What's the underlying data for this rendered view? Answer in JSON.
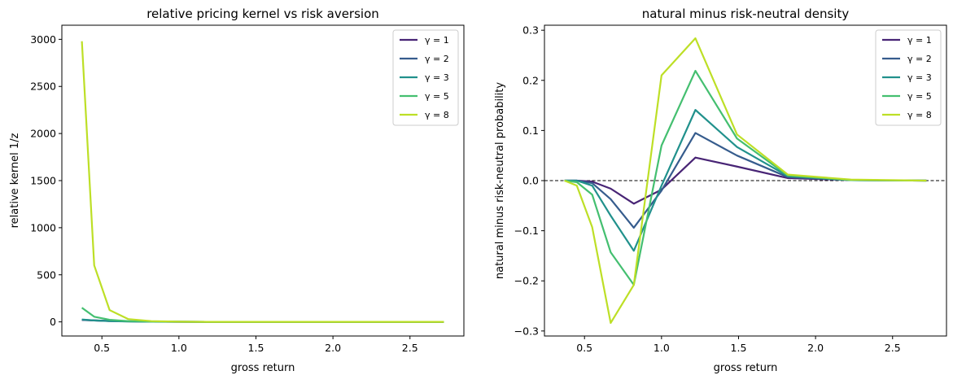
{
  "chart_data": [
    {
      "type": "line",
      "title": "relative pricing kernel vs risk aversion",
      "xlabel": "gross return",
      "ylabel": "relative kernel 1/z",
      "xlim": [
        0.24,
        2.85
      ],
      "ylim": [
        -150,
        3150
      ],
      "xticks": [
        0.5,
        1.0,
        1.5,
        2.0,
        2.5
      ],
      "xtick_labels": [
        "0.5",
        "1.0",
        "1.5",
        "2.0",
        "2.5"
      ],
      "yticks": [
        0,
        500,
        1000,
        1500,
        2000,
        2500,
        3000
      ],
      "ytick_labels": [
        "0",
        "500",
        "1000",
        "1500",
        "2000",
        "2500",
        "3000"
      ],
      "legend_position": "top-right",
      "x": [
        0.37,
        0.45,
        0.55,
        0.67,
        0.82,
        1.0,
        1.22,
        1.49,
        1.82,
        2.23,
        2.72
      ],
      "series": [
        {
          "name": "γ = 1",
          "color": "#482475",
          "values": [
            20,
            15,
            10,
            6,
            3,
            1,
            0,
            0,
            0,
            0,
            0
          ]
        },
        {
          "name": "γ = 2",
          "color": "#365c8d",
          "values": [
            22,
            15,
            9,
            5,
            2,
            1,
            0,
            0,
            0,
            0,
            0
          ]
        },
        {
          "name": "γ = 3",
          "color": "#21918c",
          "values": [
            25,
            15,
            8,
            4,
            2,
            1,
            0,
            0,
            0,
            0,
            0
          ]
        },
        {
          "name": "γ = 5",
          "color": "#44bf70",
          "values": [
            150,
            55,
            22,
            8,
            3,
            1,
            0,
            0,
            0,
            0,
            0
          ]
        },
        {
          "name": "γ = 8",
          "color": "#bddf26",
          "values": [
            2980,
            600,
            125,
            30,
            8,
            2,
            0,
            0,
            0,
            0,
            0
          ]
        }
      ]
    },
    {
      "type": "line",
      "title": "natural minus risk-neutral density",
      "xlabel": "gross return",
      "ylabel": "natural minus risk-neutral probability",
      "xlim": [
        0.24,
        2.85
      ],
      "ylim": [
        -0.31,
        0.31
      ],
      "xticks": [
        0.5,
        1.0,
        1.5,
        2.0,
        2.5
      ],
      "xtick_labels": [
        "0.5",
        "1.0",
        "1.5",
        "2.0",
        "2.5"
      ],
      "yticks": [
        -0.3,
        -0.2,
        -0.1,
        0.0,
        0.1,
        0.2,
        0.3
      ],
      "ytick_labels": [
        "−0.3",
        "−0.2",
        "−0.1",
        "0.0",
        "0.1",
        "0.2",
        "0.3"
      ],
      "reference_line": {
        "y": 0.0,
        "style": "dashed"
      },
      "legend_position": "top-right",
      "x": [
        0.37,
        0.45,
        0.55,
        0.67,
        0.82,
        1.0,
        1.22,
        1.49,
        1.82,
        2.23,
        2.72
      ],
      "series": [
        {
          "name": "γ = 1",
          "color": "#482475",
          "values": [
            0.0,
            0.0,
            -0.002,
            -0.016,
            -0.046,
            -0.018,
            0.046,
            0.028,
            0.005,
            0.001,
            0.0
          ]
        },
        {
          "name": "γ = 2",
          "color": "#365c8d",
          "values": [
            0.0,
            0.0,
            -0.005,
            -0.037,
            -0.094,
            -0.02,
            0.095,
            0.05,
            0.007,
            0.001,
            0.0
          ]
        },
        {
          "name": "γ = 3",
          "color": "#21918c",
          "values": [
            0.0,
            0.0,
            -0.01,
            -0.07,
            -0.14,
            -0.01,
            0.141,
            0.067,
            0.009,
            0.001,
            0.0
          ]
        },
        {
          "name": "γ = 5",
          "color": "#44bf70",
          "values": [
            0.0,
            -0.003,
            -0.028,
            -0.143,
            -0.208,
            0.07,
            0.219,
            0.084,
            0.01,
            0.001,
            0.0
          ]
        },
        {
          "name": "γ = 8",
          "color": "#bddf26",
          "values": [
            0.0,
            -0.01,
            -0.093,
            -0.284,
            -0.208,
            0.21,
            0.284,
            0.092,
            0.012,
            0.002,
            0.0
          ]
        }
      ]
    }
  ]
}
